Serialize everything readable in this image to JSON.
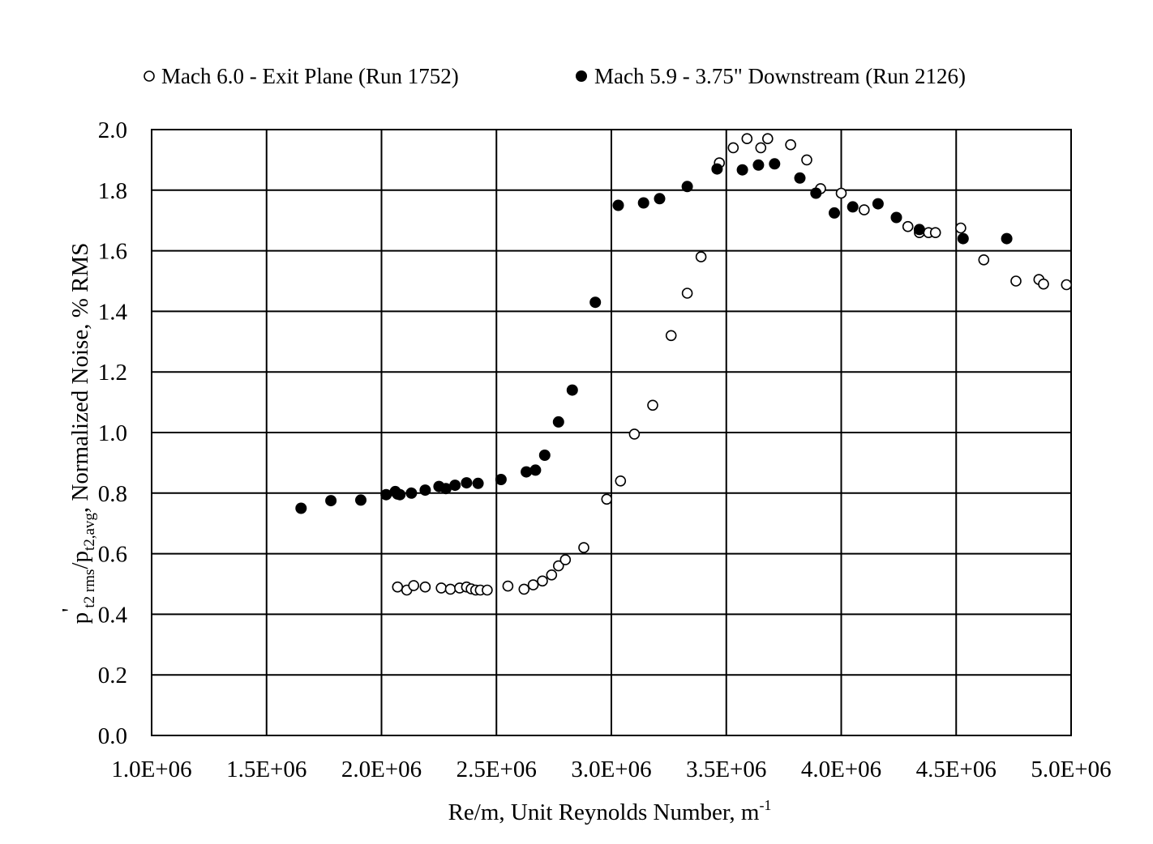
{
  "chart_data": {
    "type": "scatter",
    "xlabel": "Re/m, Unit Reynolds Number, m",
    "xlabel_sup": "-1",
    "ylabel": {
      "p": "p",
      "prime": "'",
      "sub1": "t2 rms",
      "slash": "/p",
      "sub2": "t2,avg",
      "rest": ", Normalized Noise, % RMS"
    },
    "xlim": [
      1000000,
      5000000
    ],
    "ylim": [
      0,
      2
    ],
    "x_ticks": [
      1000000,
      1500000,
      2000000,
      2500000,
      3000000,
      3500000,
      4000000,
      4500000,
      5000000
    ],
    "x_tick_labels": [
      "1.0E+06",
      "1.5E+06",
      "2.0E+06",
      "2.5E+06",
      "3.0E+06",
      "3.5E+06",
      "4.0E+06",
      "4.5E+06",
      "5.0E+06"
    ],
    "y_ticks": [
      0,
      0.2,
      0.4,
      0.6,
      0.8,
      1.0,
      1.2,
      1.4,
      1.6,
      1.8,
      2.0
    ],
    "y_tick_labels": [
      "0.0",
      "0.2",
      "0.4",
      "0.6",
      "0.8",
      "1.0",
      "1.2",
      "1.4",
      "1.6",
      "1.8",
      "2.0"
    ],
    "grid": true,
    "legend_position": "top",
    "series": [
      {
        "name": "Mach 6.0 - Exit Plane (Run 1752)",
        "marker": "open-circle",
        "x": [
          2070000,
          2110000,
          2140000,
          2190000,
          2260000,
          2300000,
          2340000,
          2370000,
          2390000,
          2410000,
          2430000,
          2460000,
          2550000,
          2620000,
          2660000,
          2700000,
          2740000,
          2770000,
          2800000,
          2880000,
          2980000,
          3040000,
          3100000,
          3180000,
          3260000,
          3330000,
          3390000,
          3470000,
          3530000,
          3590000,
          3650000,
          3680000,
          3780000,
          3850000,
          3910000,
          4000000,
          4100000,
          4290000,
          4340000,
          4380000,
          4410000,
          4520000,
          4620000,
          4760000,
          4860000,
          4880000,
          4980000
        ],
        "y": [
          0.49,
          0.48,
          0.495,
          0.49,
          0.487,
          0.483,
          0.487,
          0.49,
          0.484,
          0.48,
          0.48,
          0.48,
          0.493,
          0.483,
          0.497,
          0.51,
          0.53,
          0.56,
          0.58,
          0.62,
          0.78,
          0.84,
          0.995,
          1.09,
          1.32,
          1.46,
          1.58,
          1.89,
          1.94,
          1.97,
          1.94,
          1.97,
          1.95,
          1.9,
          1.805,
          1.79,
          1.735,
          1.68,
          1.66,
          1.66,
          1.66,
          1.675,
          1.57,
          1.5,
          1.505,
          1.49,
          1.488
        ]
      },
      {
        "name": "Mach 5.9 - 3.75\" Downstream (Run 2126)",
        "marker": "filled-circle",
        "x": [
          1650000,
          1780000,
          1910000,
          2020000,
          2060000,
          2070000,
          2080000,
          2130000,
          2190000,
          2250000,
          2280000,
          2320000,
          2370000,
          2420000,
          2520000,
          2630000,
          2670000,
          2710000,
          2770000,
          2830000,
          2930000,
          3030000,
          3140000,
          3210000,
          3330000,
          3460000,
          3570000,
          3640000,
          3710000,
          3820000,
          3890000,
          3970000,
          4050000,
          4160000,
          4240000,
          4340000,
          4530000,
          4720000
        ],
        "y": [
          0.75,
          0.775,
          0.777,
          0.795,
          0.805,
          0.797,
          0.795,
          0.8,
          0.81,
          0.822,
          0.815,
          0.826,
          0.834,
          0.832,
          0.845,
          0.87,
          0.876,
          0.925,
          1.035,
          1.14,
          1.43,
          1.75,
          1.758,
          1.772,
          1.812,
          1.87,
          1.867,
          1.883,
          1.887,
          1.84,
          1.79,
          1.725,
          1.745,
          1.755,
          1.71,
          1.67,
          1.64,
          1.64
        ]
      }
    ]
  }
}
